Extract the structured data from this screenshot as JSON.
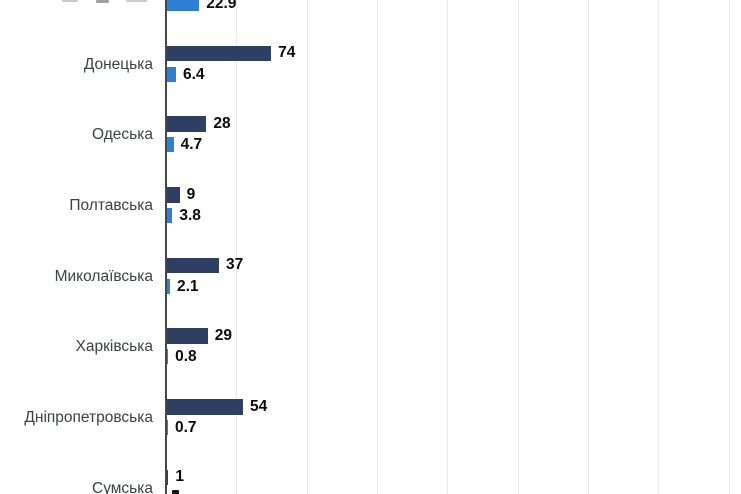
{
  "chart_data": {
    "type": "bar",
    "orientation": "horizontal",
    "title": "",
    "xlabel": "",
    "ylabel": "",
    "x_axis": {
      "min": 0,
      "visible_max_approx": 408,
      "gridline_interval": 50,
      "tick_labels_visible": false,
      "grid": true
    },
    "legend_visible": false,
    "series_ids": [
      "dark_blue",
      "light_blue"
    ],
    "rows": [
      {
        "label": "",
        "dark": null,
        "light": 22.9
      },
      {
        "label": "Донецька",
        "dark": 74,
        "light": 6.4
      },
      {
        "label": "Одеська",
        "dark": 28,
        "light": 4.7
      },
      {
        "label": "Полтавська",
        "dark": 9,
        "light": 3.8
      },
      {
        "label": "Миколаївська",
        "dark": 37,
        "light": 2.1
      },
      {
        "label": "Харківська",
        "dark": 29,
        "light": 0.8
      },
      {
        "label": "Дніпропетровська",
        "dark": 54,
        "light": 0.7
      },
      {
        "label": "Сумська",
        "dark": 1,
        "light": null
      }
    ],
    "clipping": {
      "top_row_label_and_dark_bar_cut_off": true,
      "bottom_row_light_value_cut_off": true
    }
  },
  "colors": {
    "dark_bar": "#2d4064",
    "light_bar": "#2e7fd1",
    "axis": "#45484d",
    "gridline": "#e9e9e9",
    "category_label": "#3d4246",
    "value_label": "#0a0a0a",
    "background": "#ffffff"
  }
}
